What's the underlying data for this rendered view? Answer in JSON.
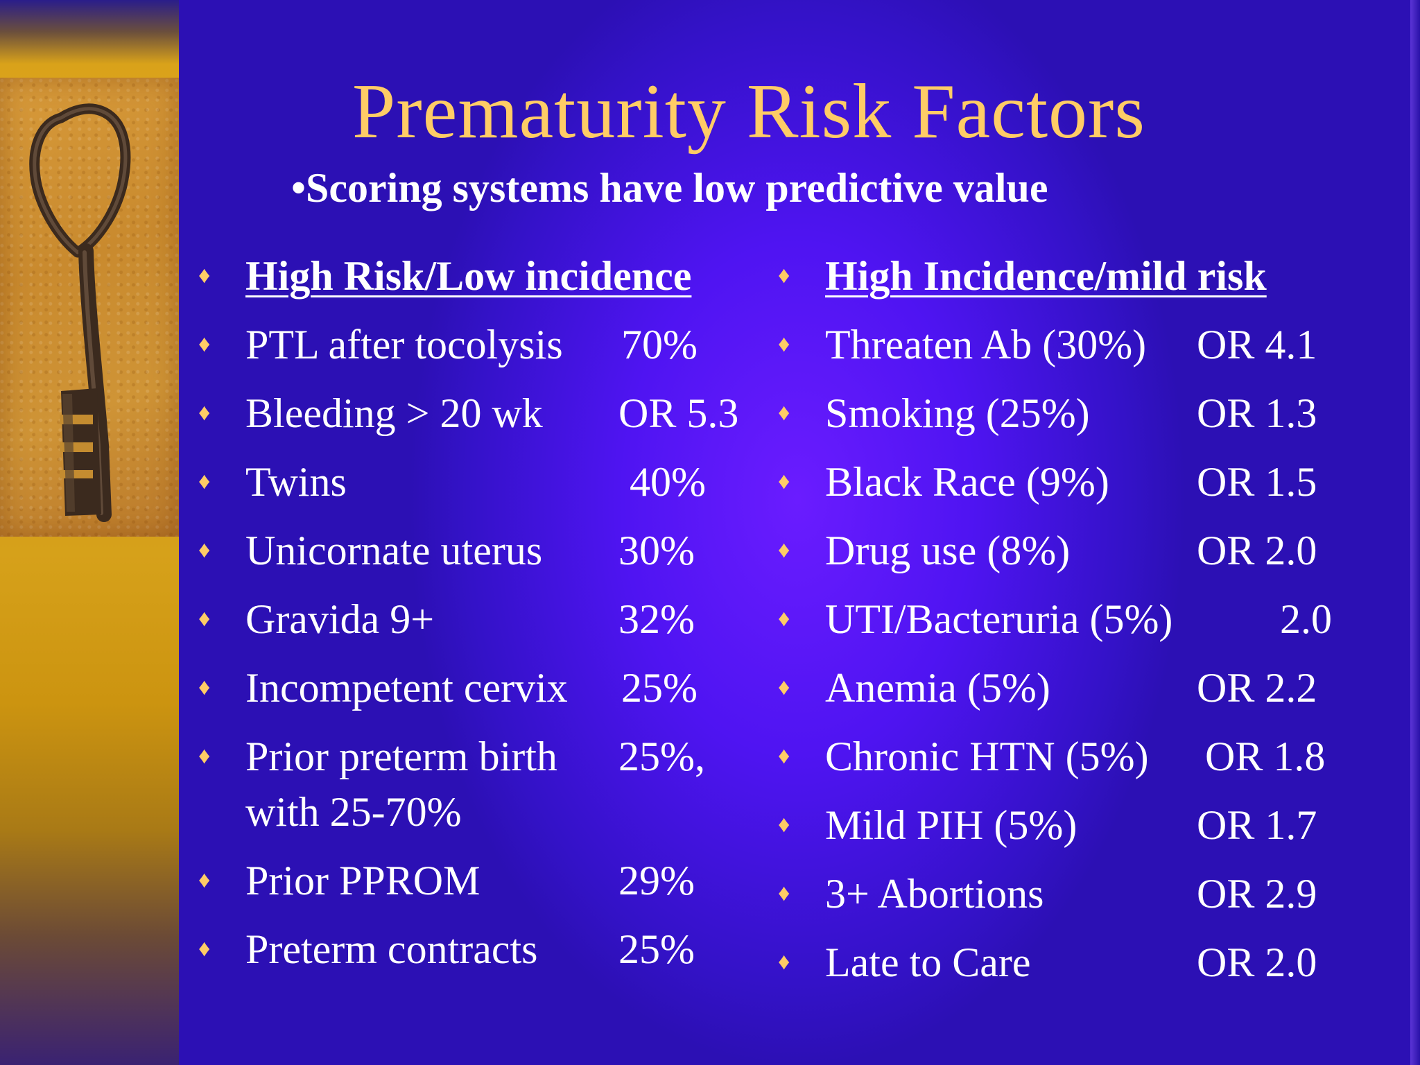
{
  "slide": {
    "title": "Prematurity Risk Factors",
    "subtitle": "•Scoring systems have low predictive value"
  },
  "left_column": {
    "heading": "High Risk/Low incidence",
    "items": [
      {
        "label": "PTL after tocolysis",
        "value": "70%"
      },
      {
        "label": "Bleeding > 20 wk",
        "value": "OR 5.3"
      },
      {
        "label": "Twins",
        "value": "40%"
      },
      {
        "label": "Unicornate uterus",
        "value": "30%"
      },
      {
        "label": "Gravida 9+",
        "value": "32%"
      },
      {
        "label": "Incompetent cervix",
        "value": "25%"
      },
      {
        "label": "Prior preterm birth",
        "value": "25%,",
        "continuation": "with 25-70%"
      },
      {
        "label": "Prior PPROM",
        "value": "29%"
      },
      {
        "label": "Preterm contracts",
        "value": "25%"
      }
    ]
  },
  "right_column": {
    "heading": "High Incidence/mild risk",
    "items": [
      {
        "label": "Threaten Ab (30%)",
        "value": "OR 4.1"
      },
      {
        "label": "Smoking (25%)",
        "value": "OR 1.3"
      },
      {
        "label": "Black Race (9%)",
        "value": "OR 1.5"
      },
      {
        "label": "Drug use (8%)",
        "value": "OR 2.0"
      },
      {
        "label": "UTI/Bacteruria (5%)",
        "value": "2.0"
      },
      {
        "label": "Anemia (5%)",
        "value": "OR 2.2"
      },
      {
        "label": "Chronic HTN (5%)",
        "value": "OR 1.8"
      },
      {
        "label": "Mild PIH (5%)",
        "value": "OR 1.7"
      },
      {
        "label": "3+ Abortions",
        "value": "OR 2.9"
      },
      {
        "label": "Late to Care",
        "value": "OR 2.0"
      }
    ]
  },
  "colors": {
    "title": "#ffcc66",
    "bullet": "#ffcc66",
    "text": "#ffffff",
    "background": "#4f14f2"
  },
  "icons": {
    "bullet": "diamond-bullet-icon",
    "illustration": "skeleton-key-icon"
  }
}
